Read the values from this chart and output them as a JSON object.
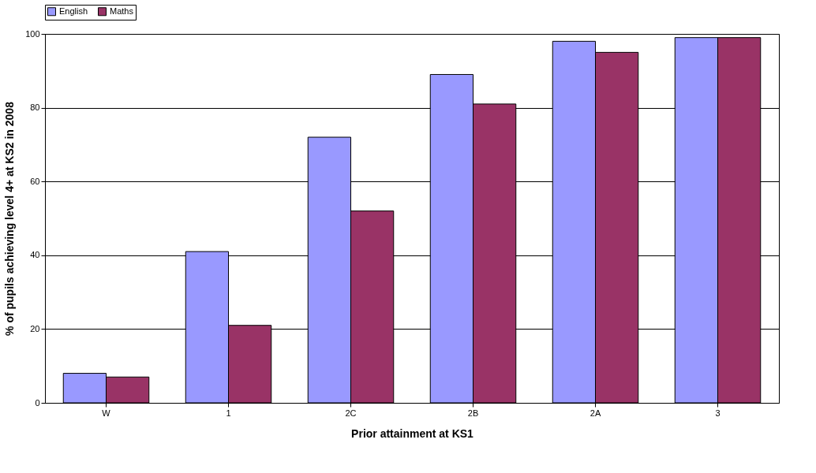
{
  "chart_data": {
    "type": "bar",
    "xlabel": "Prior attainment at KS1",
    "ylabel": "% of pupils achieving level 4+ at KS2 in 2008",
    "categories": [
      "W",
      "1",
      "2C",
      "2B",
      "2A",
      "3"
    ],
    "series": [
      {
        "name": "English",
        "color": "#9999ff",
        "values": [
          8,
          41,
          72,
          89,
          98,
          99
        ]
      },
      {
        "name": "Maths",
        "color": "#993366",
        "values": [
          7,
          21,
          52,
          81,
          95,
          99
        ]
      }
    ],
    "ylim": [
      0,
      100
    ],
    "yticks": [
      0,
      20,
      40,
      60,
      80,
      100
    ],
    "grid": "y",
    "legend": "top"
  }
}
